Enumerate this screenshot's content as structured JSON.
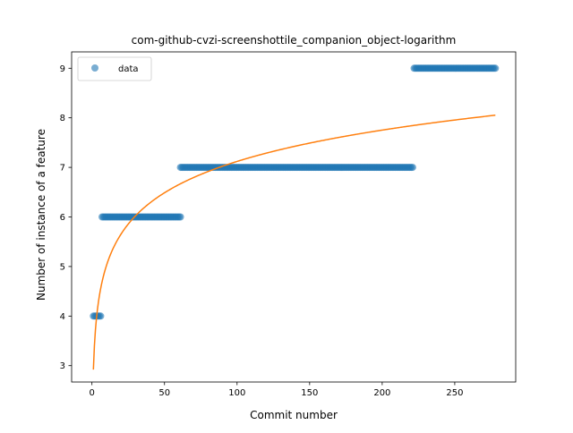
{
  "chart_data": {
    "type": "scatter",
    "title": "com-github-cvzi-screenshottile_companion_object-logarithm",
    "xlabel": "Commit number",
    "ylabel": "Number of instance of a feature",
    "xlim": [
      -14,
      292
    ],
    "ylim": [
      2.67,
      9.33
    ],
    "xticks": [
      0,
      50,
      100,
      150,
      200,
      250
    ],
    "yticks": [
      3,
      4,
      5,
      6,
      7,
      8,
      9
    ],
    "legend": {
      "placement": "top-left",
      "entries": [
        "data"
      ]
    },
    "colors": {
      "data": "#1f77b4",
      "fit": "#ff7f0e"
    },
    "series": [
      {
        "name": "data",
        "kind": "points",
        "segments": [
          {
            "x_start": 1,
            "x_end": 6,
            "y": 4
          },
          {
            "x_start": 7,
            "x_end": 61,
            "y": 6
          },
          {
            "x_start": 61,
            "x_end": 221,
            "y": 7
          },
          {
            "x_start": 222,
            "x_end": 278,
            "y": 9
          }
        ]
      },
      {
        "kind": "line",
        "model": "logarithmic",
        "a": 2.92,
        "b": 0.912,
        "x_start": 1,
        "x_end": 278
      }
    ]
  }
}
